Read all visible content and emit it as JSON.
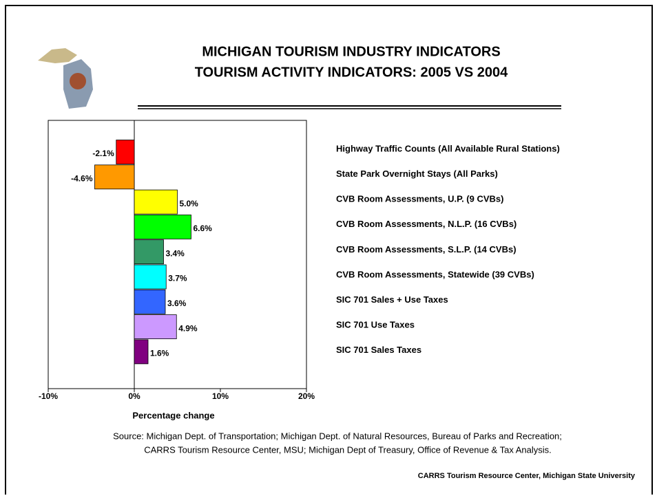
{
  "chart_data": {
    "type": "bar",
    "orientation": "horizontal",
    "title": "MICHIGAN TOURISM INDUSTRY INDICATORS",
    "subtitle": "TOURISM ACTIVITY INDICATORS: 2005 VS 2004",
    "categories": [
      "Highway Traffic Counts (All Available Rural Stations)",
      "State Park Overnight Stays (All Parks)",
      "CVB Room Assessments, U.P. (9 CVBs)",
      "CVB Room Assessments, N.L.P. (16 CVBs)",
      "CVB Room Assessments, S.L.P. (14 CVBs)",
      "CVB Room Assessments, Statewide (39 CVBs)",
      "SIC 701 Sales + Use Taxes",
      "SIC 701 Use Taxes",
      "SIC 701 Sales Taxes"
    ],
    "values": [
      -2.1,
      -4.6,
      5.0,
      6.6,
      3.4,
      3.7,
      3.6,
      4.9,
      1.6
    ],
    "value_labels": [
      "-2.1%",
      "-4.6%",
      "5.0%",
      "6.6%",
      "3.4%",
      "3.7%",
      "3.6%",
      "4.9%",
      "1.6%"
    ],
    "colors": [
      "#ff0000",
      "#ff9900",
      "#ffff00",
      "#00ff00",
      "#339966",
      "#00ffff",
      "#3366ff",
      "#cc99ff",
      "#800080"
    ],
    "xlim": [
      -10,
      20
    ],
    "xticks": [
      {
        "value": -10,
        "label": "-10%"
      },
      {
        "value": 0,
        "label": "0%"
      },
      {
        "value": 10,
        "label": "10%"
      },
      {
        "value": 20,
        "label": "20%"
      }
    ],
    "x_axis_label": "Percentage change",
    "source": [
      "Source: Michigan Dept. of Transportation; Michigan Dept. of Natural Resources, Bureau of Parks and Recreation;",
      "CARRS Tourism Resource Center, MSU; Michigan Dept of Treasury, Office of Revenue & Tax Analysis."
    ],
    "footer": "CARRS Tourism Resource Center, Michigan State University"
  }
}
